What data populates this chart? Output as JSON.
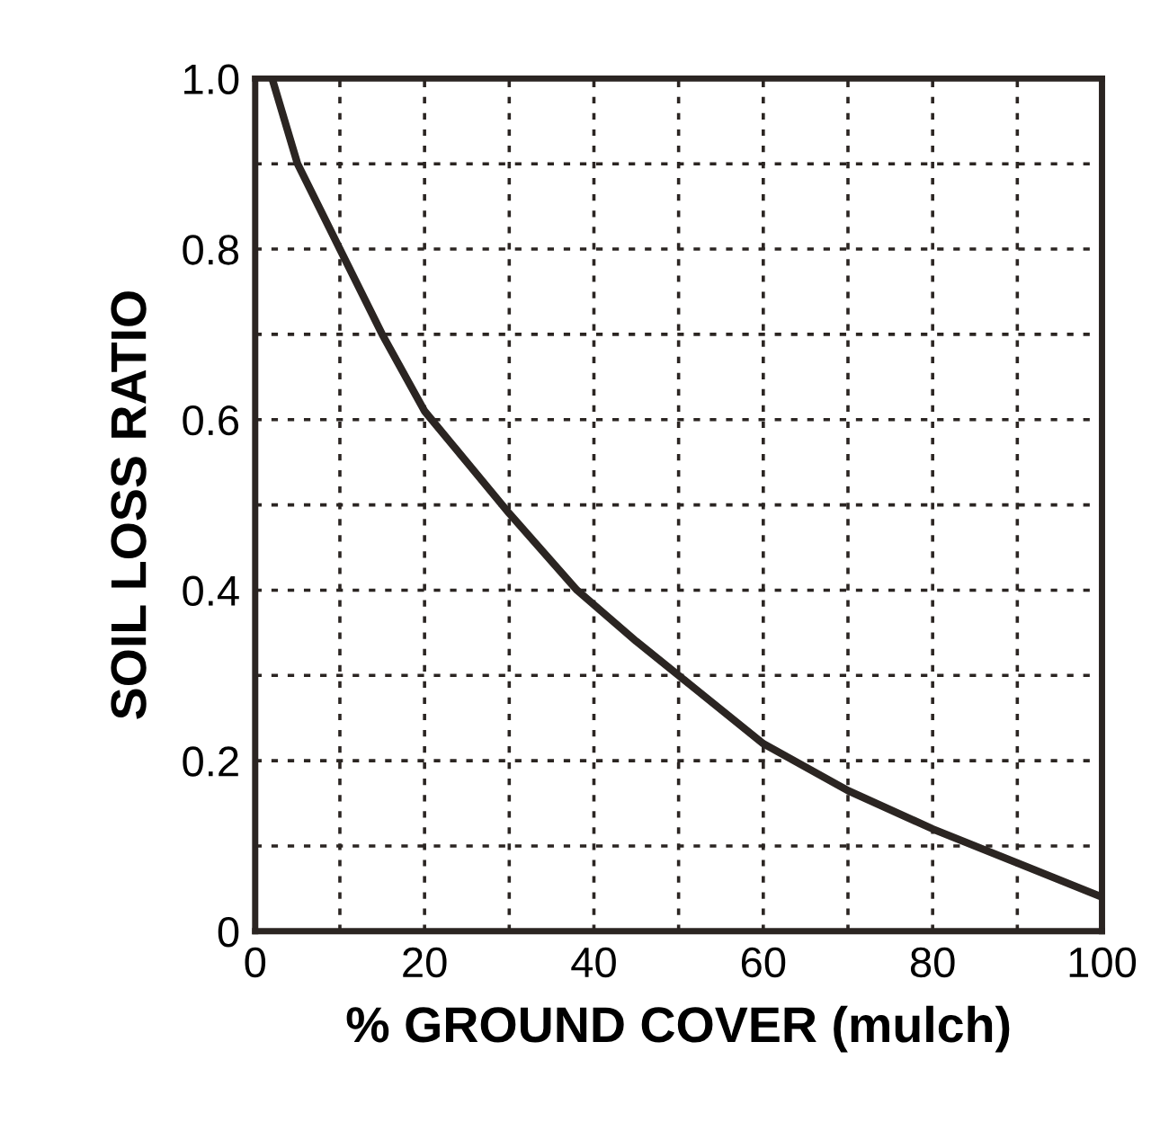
{
  "chart_data": {
    "type": "line",
    "xlabel": "% GROUND COVER (mulch)",
    "ylabel": "SOIL LOSS RATIO",
    "x": [
      2,
      5,
      10,
      15,
      20,
      25,
      30,
      38,
      45,
      50,
      60,
      70,
      80,
      90,
      100
    ],
    "series": [
      {
        "color": "#2b2522",
        "values": [
          1.0,
          0.9,
          0.8,
          0.7,
          0.61,
          0.55,
          0.49,
          0.4,
          0.34,
          0.3,
          0.22,
          0.165,
          0.12,
          0.08,
          0.04
        ]
      }
    ],
    "xlim": [
      0,
      100
    ],
    "ylim": [
      0,
      1.0
    ],
    "xticks": [
      0,
      {
        "value": 10,
        "label": null
      },
      20,
      {
        "value": 30,
        "label": null
      },
      40,
      {
        "value": 50,
        "label": null
      },
      60,
      {
        "value": 70,
        "label": null
      },
      80,
      {
        "value": 90,
        "label": null
      },
      100
    ],
    "yticks": [
      0,
      {
        "value": 0.1,
        "label": null
      },
      0.2,
      {
        "value": 0.3,
        "label": null
      },
      0.4,
      {
        "value": 0.5,
        "label": null
      },
      0.6,
      {
        "value": 0.7,
        "label": null
      },
      0.8,
      {
        "value": 0.9,
        "label": null
      },
      {
        "value": 1.0,
        "label": "1.0"
      }
    ],
    "grid": true,
    "marker": "none",
    "line_style": "solid",
    "legend": false
  }
}
